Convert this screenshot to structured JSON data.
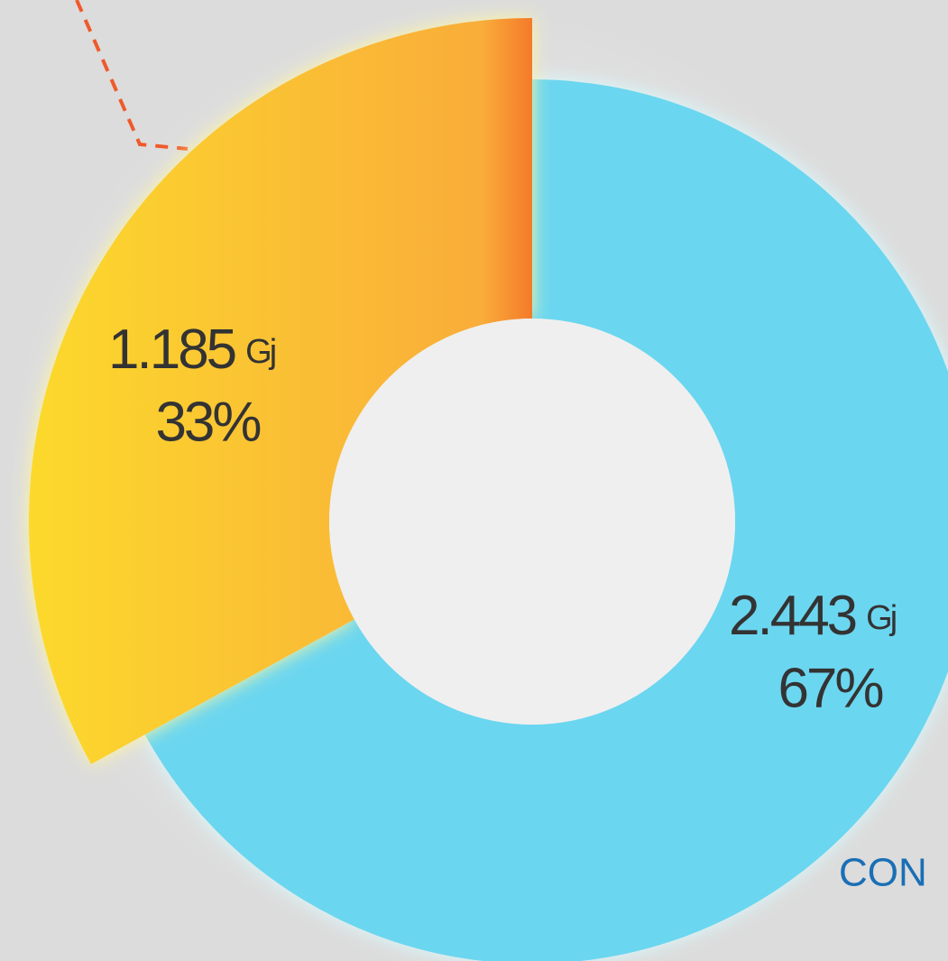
{
  "chart_data": {
    "type": "donut",
    "values": [
      33,
      67
    ],
    "value_labels": [
      "33%",
      "67%"
    ],
    "amounts": [
      1185,
      2443
    ],
    "amount_labels": [
      "1.185",
      "2.443"
    ],
    "unit": "Gj",
    "colors": [
      "#fbc132",
      "#6bd6f0"
    ],
    "annotation": "CON"
  }
}
